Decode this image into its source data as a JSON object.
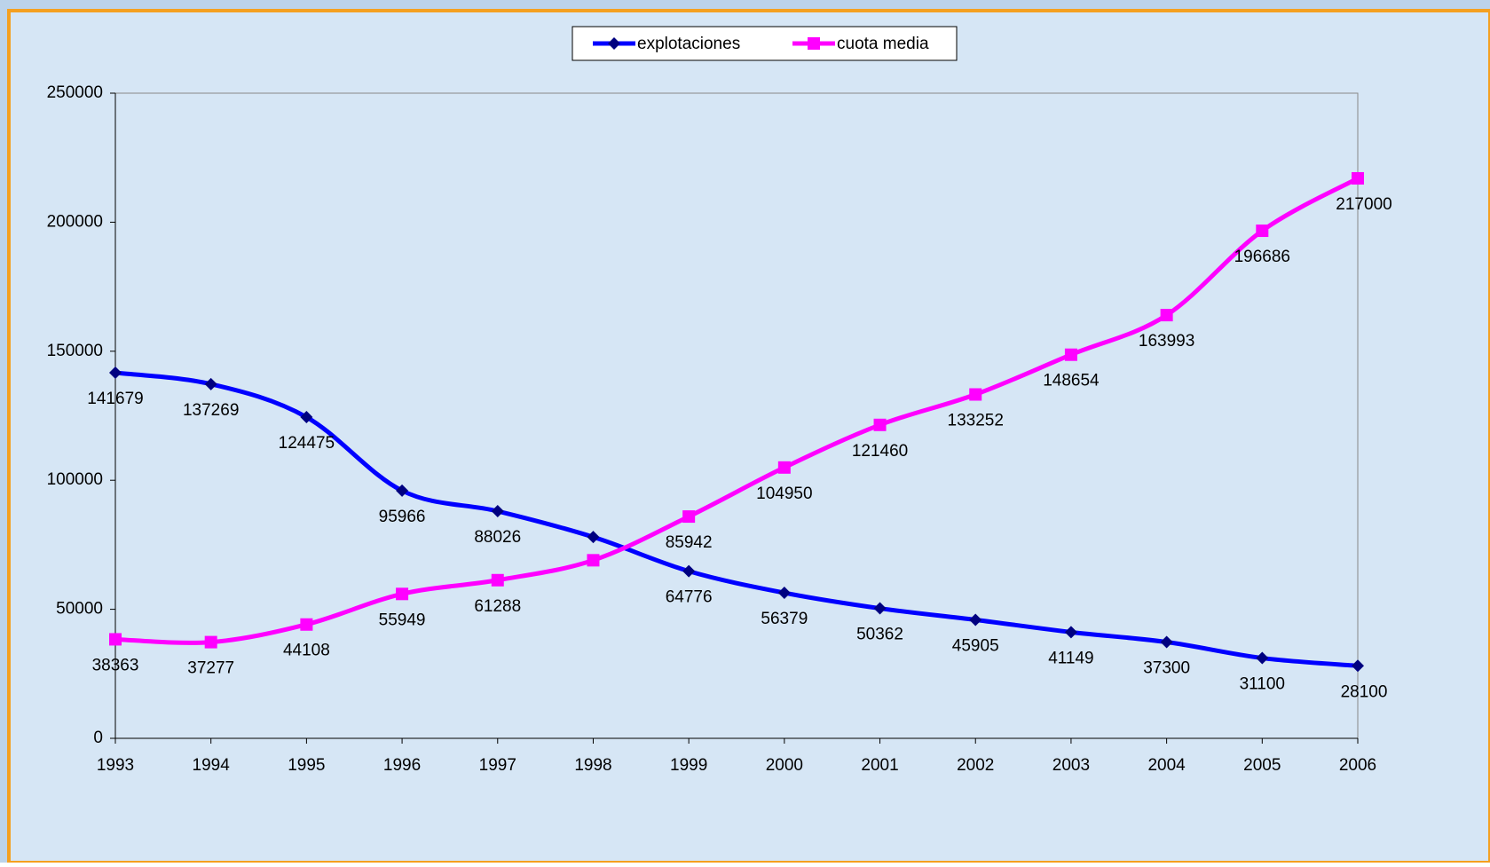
{
  "chart_data": {
    "type": "line",
    "categories": [
      "1993",
      "1994",
      "1995",
      "1996",
      "1997",
      "1998",
      "1999",
      "2000",
      "2001",
      "2002",
      "2003",
      "2004",
      "2005",
      "2006"
    ],
    "series": [
      {
        "name": "explotaciones",
        "color": "#0000ff",
        "marker": "diamond",
        "marker_color": "#000080",
        "values": [
          141679,
          137269,
          124475,
          95966,
          88026,
          78000,
          64776,
          56379,
          50362,
          45905,
          41149,
          37300,
          31100,
          28100
        ],
        "value_labels": [
          "141679",
          "137269",
          "124475",
          "95966",
          "88026",
          null,
          "64776",
          "56379",
          "50362",
          "45905",
          "41149",
          "37300",
          "31100",
          "28100"
        ]
      },
      {
        "name": "cuota media",
        "color": "#ff00ff",
        "marker": "square",
        "marker_color": "#ff00ff",
        "values": [
          38363,
          37277,
          44108,
          55949,
          61288,
          69000,
          85942,
          104950,
          121460,
          133252,
          148654,
          163993,
          196686,
          217000
        ],
        "value_labels": [
          "38363",
          "37277",
          "44108",
          "55949",
          "61288",
          null,
          "85942",
          "104950",
          "121460",
          "133252",
          "148654",
          "163993",
          "196686",
          "217000"
        ]
      }
    ],
    "ylim": [
      0,
      250000
    ],
    "yticks": [
      0,
      50000,
      100000,
      150000,
      200000,
      250000
    ],
    "smooth": true,
    "legend": "top"
  }
}
